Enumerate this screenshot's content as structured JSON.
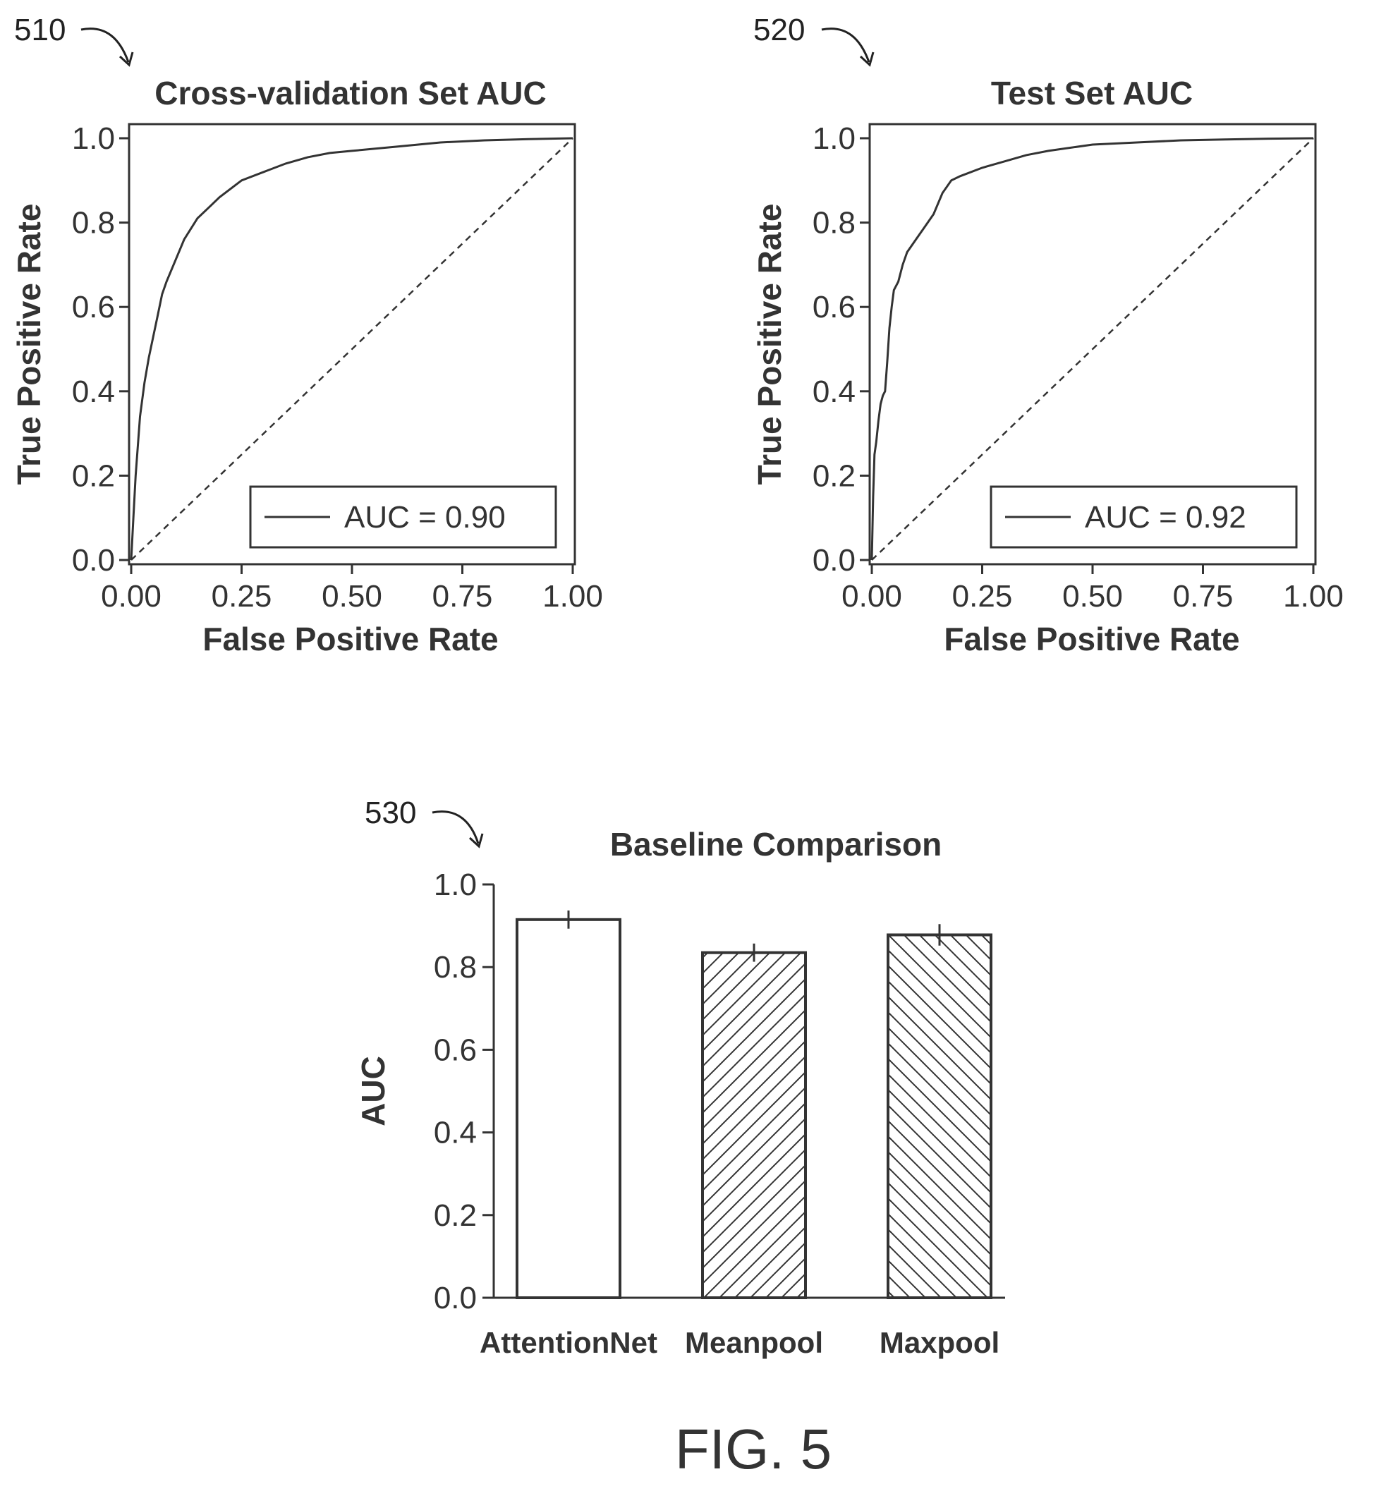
{
  "figure_caption": "FIG. 5",
  "colors": {
    "ink": "#333333",
    "background": "#ffffff"
  },
  "chart_data": [
    {
      "ref_label": "510",
      "type": "line",
      "title": "Cross-validation Set AUC",
      "xlabel": "False Positive Rate",
      "ylabel": "True Positive Rate",
      "xlim": [
        0,
        1
      ],
      "ylim": [
        0,
        1
      ],
      "xticks": [
        "0.00",
        "0.25",
        "0.50",
        "0.75",
        "1.00"
      ],
      "yticks": [
        "0.0",
        "0.2",
        "0.4",
        "0.6",
        "0.8",
        "1.0"
      ],
      "legend_label": "AUC = 0.90",
      "legend_position": "bottom-right",
      "grid": false,
      "series": [
        {
          "x": [
            0,
            0.005,
            0.01,
            0.02,
            0.03,
            0.04,
            0.05,
            0.06,
            0.07,
            0.08,
            0.1,
            0.12,
            0.15,
            0.18,
            0.2,
            0.25,
            0.3,
            0.35,
            0.4,
            0.45,
            0.5,
            0.6,
            0.7,
            0.8,
            0.9,
            1.0
          ],
          "y": [
            0,
            0.1,
            0.2,
            0.34,
            0.42,
            0.48,
            0.53,
            0.58,
            0.63,
            0.66,
            0.71,
            0.76,
            0.81,
            0.84,
            0.86,
            0.9,
            0.92,
            0.94,
            0.955,
            0.965,
            0.97,
            0.98,
            0.99,
            0.995,
            0.998,
            1.0
          ]
        }
      ],
      "reference_line": {
        "x": [
          0,
          1
        ],
        "y": [
          0,
          1
        ],
        "style": "dashed"
      }
    },
    {
      "ref_label": "520",
      "type": "line",
      "title": "Test Set AUC",
      "xlabel": "False Positive Rate",
      "ylabel": "True Positive Rate",
      "xlim": [
        0,
        1
      ],
      "ylim": [
        0,
        1
      ],
      "xticks": [
        "0.00",
        "0.25",
        "0.50",
        "0.75",
        "1.00"
      ],
      "yticks": [
        "0.0",
        "0.2",
        "0.4",
        "0.6",
        "0.8",
        "1.0"
      ],
      "legend_label": "AUC = 0.92",
      "legend_position": "bottom-right",
      "grid": false,
      "series": [
        {
          "x": [
            0,
            0.003,
            0.006,
            0.01,
            0.015,
            0.02,
            0.025,
            0.03,
            0.035,
            0.04,
            0.045,
            0.05,
            0.06,
            0.07,
            0.08,
            0.1,
            0.12,
            0.14,
            0.16,
            0.18,
            0.2,
            0.25,
            0.3,
            0.35,
            0.4,
            0.5,
            0.6,
            0.7,
            0.8,
            0.9,
            1.0
          ],
          "y": [
            0,
            0.15,
            0.25,
            0.28,
            0.33,
            0.37,
            0.39,
            0.4,
            0.47,
            0.55,
            0.6,
            0.64,
            0.66,
            0.7,
            0.73,
            0.76,
            0.79,
            0.82,
            0.87,
            0.9,
            0.91,
            0.93,
            0.945,
            0.96,
            0.97,
            0.985,
            0.99,
            0.995,
            0.997,
            0.999,
            1.0
          ]
        }
      ],
      "reference_line": {
        "x": [
          0,
          1
        ],
        "y": [
          0,
          1
        ],
        "style": "dashed"
      }
    },
    {
      "ref_label": "530",
      "type": "bar",
      "title": "Baseline Comparison",
      "xlabel": "",
      "ylabel": "AUC",
      "ylim": [
        0,
        1
      ],
      "yticks": [
        "0.0",
        "0.2",
        "0.4",
        "0.6",
        "0.8",
        "1.0"
      ],
      "grid": false,
      "categories": [
        "AttentionNet",
        "Meanpool",
        "Maxpool"
      ],
      "values": [
        0.915,
        0.835,
        0.878
      ],
      "errors": [
        0.022,
        0.022,
        0.026
      ],
      "fills": [
        "none",
        "hatch-forward",
        "hatch-backward"
      ]
    }
  ]
}
